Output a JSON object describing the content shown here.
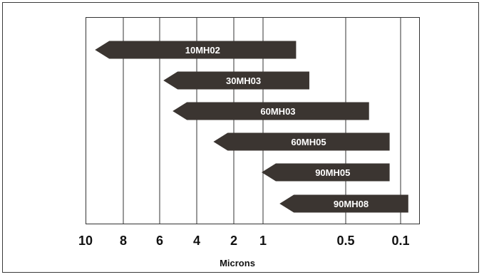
{
  "chart_data": {
    "type": "bar",
    "orientation": "horizontal-range",
    "xlabel": "Microns",
    "x_ticks": [
      "10",
      "8",
      "6",
      "4",
      "2",
      "1",
      "0.5",
      "0.1"
    ],
    "bar_color": "#3b3531",
    "label_color": "#ffffff",
    "series": [
      {
        "name": "10MH02",
        "from_micron": 9.5,
        "to_micron": 0.8
      },
      {
        "name": "30MH03",
        "from_micron": 5.8,
        "to_micron": 0.72
      },
      {
        "name": "60MH03",
        "from_micron": 5.3,
        "to_micron": 0.33
      },
      {
        "name": "60MH05",
        "from_micron": 3.1,
        "to_micron": 0.18
      },
      {
        "name": "90MH05",
        "from_micron": 1.05,
        "to_micron": 0.18
      },
      {
        "name": "90MH08",
        "from_micron": 0.9,
        "to_micron": 0.08
      }
    ]
  }
}
